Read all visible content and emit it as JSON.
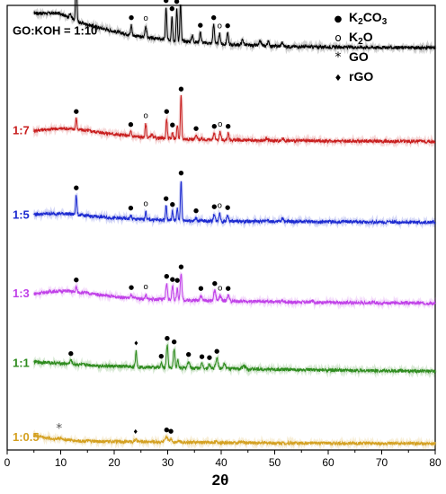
{
  "chart_data": {
    "type": "line",
    "title": "",
    "xlabel": "2θ",
    "ylabel": "",
    "xlim": [
      0,
      80
    ],
    "xticks": [
      0,
      10,
      20,
      30,
      40,
      50,
      60,
      70,
      80
    ],
    "grid": false,
    "legend": {
      "placement": "top-right",
      "entries": [
        {
          "symbol": "●",
          "label": "K2CO3",
          "text": "K",
          "sub": "2",
          "mid": "CO",
          "sub2": "3"
        },
        {
          "symbol": "o",
          "label": "K2O",
          "text": "K",
          "sub": "2",
          "mid": "O",
          "sub2": ""
        },
        {
          "symbol": "*",
          "label": "GO",
          "text": "GO",
          "sub": "",
          "mid": "",
          "sub2": ""
        },
        {
          "symbol": "♦",
          "label": "rGO",
          "text": "rGO",
          "sub": "",
          "mid": "",
          "sub2": ""
        }
      ]
    },
    "series": [
      {
        "name": "GO:KOH = 1:10",
        "color": "#000000",
        "baseline": 0.93,
        "bg": [
          [
            5,
            0.96
          ],
          [
            10,
            0.95
          ],
          [
            13,
            0.72
          ],
          [
            20,
            0.45
          ],
          [
            25,
            0.3
          ],
          [
            30,
            0.22
          ],
          [
            40,
            0.1
          ],
          [
            50,
            0.04
          ],
          [
            60,
            0.02
          ],
          [
            80,
            0.0
          ]
        ],
        "peaks": [
          [
            11.8,
            0.12,
            0.2
          ],
          [
            12.9,
            1.25,
            0.12
          ],
          [
            23.2,
            0.28,
            0.12
          ],
          [
            25.9,
            0.32,
            0.15
          ],
          [
            29.7,
            0.88,
            0.12
          ],
          [
            30.8,
            0.68,
            0.12
          ],
          [
            31.7,
            0.88,
            0.12
          ],
          [
            32.4,
            1.02,
            0.12
          ],
          [
            34.6,
            0.18,
            0.15
          ],
          [
            36.1,
            0.28,
            0.15
          ],
          [
            38.6,
            0.52,
            0.15
          ],
          [
            39.7,
            0.28,
            0.15
          ],
          [
            41.2,
            0.32,
            0.15
          ],
          [
            44.0,
            0.14,
            0.2
          ],
          [
            47.3,
            0.12,
            0.2
          ],
          [
            48.8,
            0.12,
            0.2
          ],
          [
            51.4,
            0.1,
            0.2
          ]
        ],
        "markers": [
          {
            "x": 12.9,
            "s": "●"
          },
          {
            "x": 23.2,
            "s": "●"
          },
          {
            "x": 25.9,
            "s": "o"
          },
          {
            "x": 29.7,
            "s": "●"
          },
          {
            "x": 30.8,
            "s": "●"
          },
          {
            "x": 31.7,
            "s": "●"
          },
          {
            "x": 32.4,
            "s": "●"
          },
          {
            "x": 36.1,
            "s": "●"
          },
          {
            "x": 38.6,
            "s": "●"
          },
          {
            "x": 39.7,
            "s": "o"
          },
          {
            "x": 41.2,
            "s": "●"
          }
        ]
      },
      {
        "name": "1:7",
        "color": "#c81e1e",
        "baseline": 0.71,
        "bg": [
          [
            5,
            0.3
          ],
          [
            8,
            0.34
          ],
          [
            11,
            0.36
          ],
          [
            15,
            0.3
          ],
          [
            20,
            0.2
          ],
          [
            25,
            0.12
          ],
          [
            30,
            0.08
          ],
          [
            40,
            0.04
          ],
          [
            50,
            0.02
          ],
          [
            80,
            0.0
          ]
        ],
        "peaks": [
          [
            12.9,
            0.3,
            0.12
          ],
          [
            23.1,
            0.12,
            0.12
          ],
          [
            25.9,
            0.38,
            0.12
          ],
          [
            27.0,
            0.1,
            0.15
          ],
          [
            29.8,
            0.55,
            0.12
          ],
          [
            30.9,
            0.18,
            0.12
          ],
          [
            31.8,
            0.38,
            0.12
          ],
          [
            32.5,
            1.18,
            0.12
          ],
          [
            35.3,
            0.1,
            0.15
          ],
          [
            38.7,
            0.18,
            0.15
          ],
          [
            39.8,
            0.22,
            0.15
          ],
          [
            41.3,
            0.18,
            0.15
          ],
          [
            48.5,
            0.06,
            0.2
          ],
          [
            51.5,
            0.06,
            0.2
          ]
        ],
        "markers": [
          {
            "x": 12.9,
            "s": "●"
          },
          {
            "x": 23.1,
            "s": "●"
          },
          {
            "x": 25.9,
            "s": "o"
          },
          {
            "x": 29.8,
            "s": "●"
          },
          {
            "x": 30.9,
            "s": "●"
          },
          {
            "x": 32.5,
            "s": "●"
          },
          {
            "x": 35.3,
            "s": "●"
          },
          {
            "x": 38.7,
            "s": "●"
          },
          {
            "x": 39.8,
            "s": "o"
          },
          {
            "x": 41.3,
            "s": "●"
          }
        ]
      },
      {
        "name": "1:5",
        "color": "#1c2ad0",
        "baseline": 0.52,
        "bg": [
          [
            5,
            0.22
          ],
          [
            8,
            0.24
          ],
          [
            11,
            0.24
          ],
          [
            15,
            0.18
          ],
          [
            20,
            0.12
          ],
          [
            25,
            0.08
          ],
          [
            30,
            0.06
          ],
          [
            40,
            0.03
          ],
          [
            50,
            0.02
          ],
          [
            80,
            0.0
          ]
        ],
        "peaks": [
          [
            12.9,
            0.55,
            0.12
          ],
          [
            23.1,
            0.1,
            0.12
          ],
          [
            25.9,
            0.22,
            0.12
          ],
          [
            29.7,
            0.4,
            0.12
          ],
          [
            30.9,
            0.24,
            0.12
          ],
          [
            31.8,
            0.32,
            0.12
          ],
          [
            32.5,
            1.12,
            0.12
          ],
          [
            35.3,
            0.08,
            0.15
          ],
          [
            38.7,
            0.2,
            0.15
          ],
          [
            39.7,
            0.22,
            0.15
          ],
          [
            41.2,
            0.18,
            0.15
          ],
          [
            48.5,
            0.06,
            0.2
          ],
          [
            51.5,
            0.08,
            0.2
          ]
        ],
        "markers": [
          {
            "x": 12.9,
            "s": "●"
          },
          {
            "x": 23.1,
            "s": "●"
          },
          {
            "x": 25.9,
            "s": "o"
          },
          {
            "x": 29.7,
            "s": "●"
          },
          {
            "x": 30.9,
            "s": "●"
          },
          {
            "x": 32.5,
            "s": "●"
          },
          {
            "x": 35.3,
            "s": "●"
          },
          {
            "x": 38.7,
            "s": "●"
          },
          {
            "x": 39.7,
            "s": "o"
          },
          {
            "x": 41.2,
            "s": "●"
          }
        ]
      },
      {
        "name": "1:3",
        "color": "#c040e8",
        "baseline": 0.33,
        "bg": [
          [
            5,
            0.26
          ],
          [
            8,
            0.32
          ],
          [
            11,
            0.34
          ],
          [
            15,
            0.28
          ],
          [
            20,
            0.18
          ],
          [
            25,
            0.12
          ],
          [
            30,
            0.1
          ],
          [
            40,
            0.06
          ],
          [
            50,
            0.04
          ],
          [
            60,
            0.02
          ],
          [
            80,
            0.0
          ]
        ],
        "peaks": [
          [
            12.9,
            0.14,
            0.12
          ],
          [
            23.2,
            0.1,
            0.12
          ],
          [
            25.9,
            0.12,
            0.12
          ],
          [
            29.8,
            0.45,
            0.15
          ],
          [
            30.9,
            0.36,
            0.15
          ],
          [
            31.8,
            0.34,
            0.12
          ],
          [
            32.5,
            0.72,
            0.15
          ],
          [
            36.2,
            0.14,
            0.2
          ],
          [
            38.8,
            0.28,
            0.2
          ],
          [
            39.8,
            0.14,
            0.2
          ],
          [
            41.3,
            0.16,
            0.2
          ],
          [
            51.5,
            0.04,
            0.2
          ],
          [
            57.0,
            0.04,
            0.2
          ]
        ],
        "markers": [
          {
            "x": 12.9,
            "s": "●"
          },
          {
            "x": 23.2,
            "s": "●"
          },
          {
            "x": 25.9,
            "s": "o"
          },
          {
            "x": 29.8,
            "s": "●"
          },
          {
            "x": 30.9,
            "s": "●"
          },
          {
            "x": 31.8,
            "s": "●"
          },
          {
            "x": 32.5,
            "s": "●"
          },
          {
            "x": 36.2,
            "s": "●"
          },
          {
            "x": 38.8,
            "s": "●"
          },
          {
            "x": 39.8,
            "s": "o"
          },
          {
            "x": 41.3,
            "s": "●"
          }
        ]
      },
      {
        "name": "1:1",
        "color": "#2e8b1e",
        "baseline": 0.17,
        "bg": [
          [
            5,
            0.26
          ],
          [
            8,
            0.24
          ],
          [
            12,
            0.2
          ],
          [
            18,
            0.15
          ],
          [
            25,
            0.12
          ],
          [
            30,
            0.1
          ],
          [
            40,
            0.08
          ],
          [
            50,
            0.05
          ],
          [
            60,
            0.03
          ],
          [
            80,
            0.0
          ]
        ],
        "peaks": [
          [
            11.9,
            0.1,
            0.2
          ],
          [
            24.1,
            0.45,
            0.12
          ],
          [
            28.8,
            0.12,
            0.15
          ],
          [
            29.9,
            0.62,
            0.15
          ],
          [
            31.2,
            0.52,
            0.15
          ],
          [
            31.9,
            0.22,
            0.12
          ],
          [
            33.9,
            0.18,
            0.2
          ],
          [
            36.4,
            0.12,
            0.2
          ],
          [
            37.8,
            0.1,
            0.2
          ],
          [
            39.2,
            0.28,
            0.2
          ],
          [
            40.6,
            0.16,
            0.2
          ],
          [
            44.3,
            0.08,
            0.3
          ]
        ],
        "markers": [
          {
            "x": 11.9,
            "s": "●"
          },
          {
            "x": 24.1,
            "s": "♦"
          },
          {
            "x": 28.8,
            "s": "●"
          },
          {
            "x": 29.9,
            "s": "●"
          },
          {
            "x": 31.2,
            "s": "●"
          },
          {
            "x": 33.9,
            "s": "●"
          },
          {
            "x": 36.4,
            "s": "●"
          },
          {
            "x": 37.8,
            "s": "●"
          },
          {
            "x": 39.2,
            "s": "●"
          }
        ]
      },
      {
        "name": "1:0.5",
        "color": "#d4a020",
        "baseline": 0.0,
        "bg": [
          [
            5,
            0.25
          ],
          [
            7,
            0.17
          ],
          [
            9,
            0.12
          ],
          [
            10,
            0.13
          ],
          [
            13,
            0.08
          ],
          [
            18,
            0.06
          ],
          [
            24,
            0.06
          ],
          [
            30,
            0.05
          ],
          [
            40,
            0.03
          ],
          [
            50,
            0.02
          ],
          [
            80,
            0.0
          ]
        ],
        "peaks": [
          [
            9.7,
            0.03,
            0.4
          ],
          [
            24.0,
            0.06,
            0.15
          ],
          [
            29.8,
            0.14,
            0.2
          ],
          [
            30.6,
            0.1,
            0.2
          ],
          [
            32.0,
            0.04,
            0.2
          ],
          [
            38.9,
            0.03,
            0.2
          ],
          [
            43.9,
            0.02,
            0.3
          ]
        ],
        "markers": [
          {
            "x": 9.7,
            "s": "*"
          },
          {
            "x": 24.0,
            "s": "♦"
          },
          {
            "x": 29.8,
            "s": "●"
          },
          {
            "x": 30.6,
            "s": "●"
          }
        ]
      }
    ]
  }
}
